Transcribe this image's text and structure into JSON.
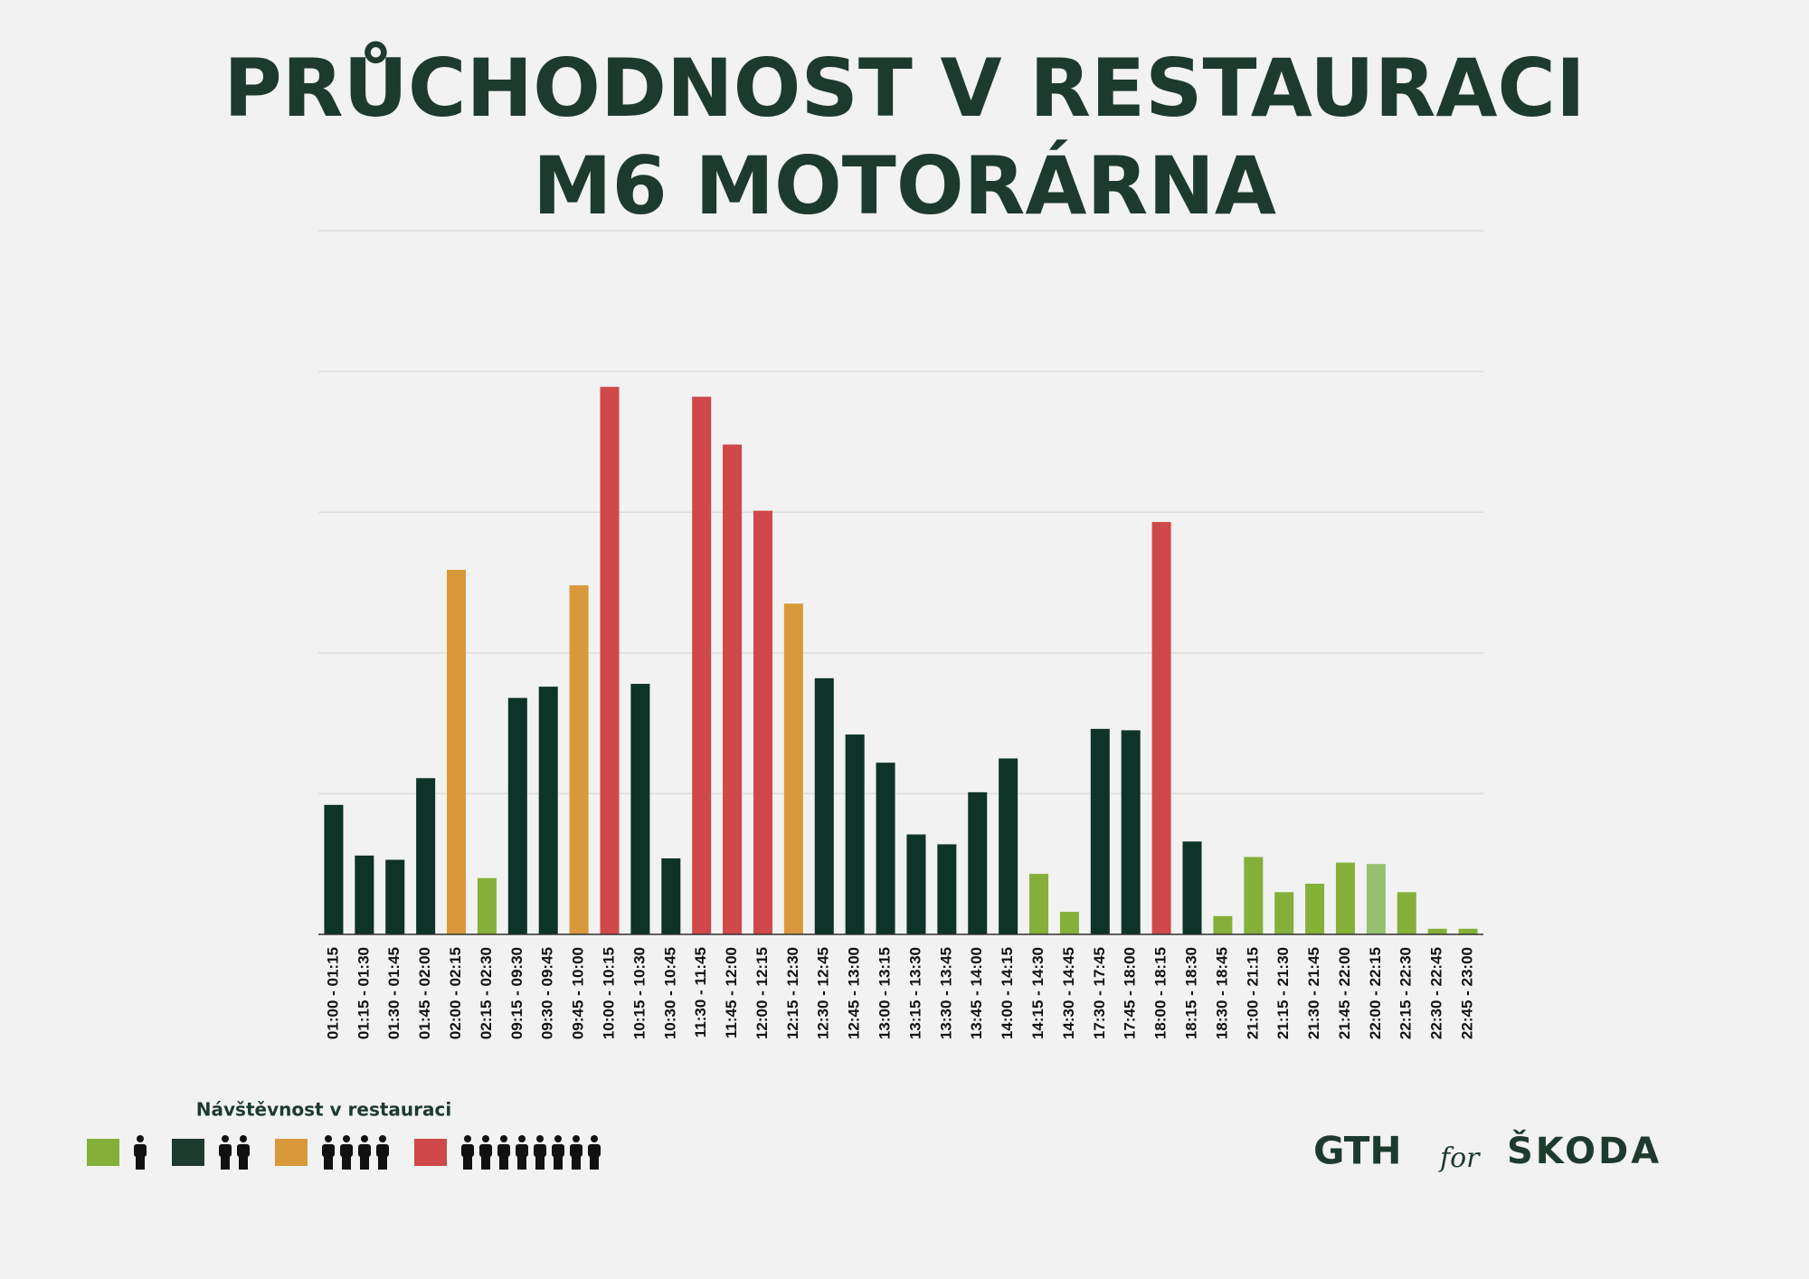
{
  "chart_data": {
    "type": "bar",
    "title": [
      "PRŮCHODNOST V RESTAURACI",
      "M6 MOTORÁRNA"
    ],
    "categories": [
      "01:00 - 01:15",
      "01:15 - 01:30",
      "01:30 - 01:45",
      "01:45 - 02:00",
      "02:00 - 02:15",
      "02:15 - 02:30",
      "09:15 - 09:30",
      "09:30 - 09:45",
      "09:45 - 10:00",
      "10:00 - 10:15",
      "10:15 - 10:30",
      "10:30 - 10:45",
      "11:30 - 11:45",
      "11:45 - 12:00",
      "12:00 - 12:15",
      "12:15 - 12:30",
      "12:30 - 12:45",
      "12:45 - 13:00",
      "13:00 - 13:15",
      "13:15 - 13:30",
      "13:30 - 13:45",
      "13:45 - 14:00",
      "14:00 - 14:15",
      "14:15 - 14:30",
      "14:30 - 14:45",
      "17:30 - 17:45",
      "17:45 - 18:00",
      "18:00 - 18:15",
      "18:15 - 18:30",
      "18:30 - 18:45",
      "21:00 - 21:15",
      "21:15 - 21:30",
      "21:30 - 21:45",
      "21:45 - 22:00",
      "22:00 - 22:15",
      "22:15 - 22:30",
      "22:30 - 22:45",
      "22:45 - 23:00"
    ],
    "values": [
      0.92,
      0.56,
      0.53,
      1.11,
      2.59,
      0.4,
      1.68,
      1.76,
      2.48,
      3.89,
      1.78,
      0.54,
      3.82,
      3.48,
      3.01,
      2.35,
      1.82,
      1.42,
      1.22,
      0.71,
      0.64,
      1.01,
      1.25,
      0.43,
      0.16,
      1.46,
      1.45,
      2.93,
      0.66,
      0.13,
      0.55,
      0.3,
      0.36,
      0.51,
      0.5,
      0.3,
      0.04,
      0.04
    ],
    "colors": [
      "#0e3328",
      "#0e3328",
      "#0e3328",
      "#0e3328",
      "#d9993a",
      "#84b03a",
      "#0e3328",
      "#0e3328",
      "#d9993a",
      "#d0484a",
      "#0e3328",
      "#0e3328",
      "#d0484a",
      "#d0484a",
      "#d0484a",
      "#d9993a",
      "#0e3328",
      "#0e3328",
      "#0e3328",
      "#0e3328",
      "#0e3328",
      "#0e3328",
      "#0e3328",
      "#84b03a",
      "#84b03a",
      "#0e3328",
      "#0e3328",
      "#d0484a",
      "#0e3328",
      "#84b03a",
      "#84b03a",
      "#84b03a",
      "#84b03a",
      "#84b03a",
      "#94c070",
      "#84b03a",
      "#84b03a",
      "#84b03a"
    ],
    "ylim": [
      0,
      5
    ],
    "yticks": [
      0,
      1,
      2,
      3,
      4,
      5
    ],
    "grid": true,
    "legend": {
      "title": "Návštěvnost v restauraci",
      "items": [
        {
          "color": "#84b03a",
          "people": 1
        },
        {
          "color": "#1d3a2e",
          "people": 2
        },
        {
          "color": "#d9993a",
          "people": 4
        },
        {
          "color": "#d0484a",
          "people": 8
        }
      ]
    }
  },
  "logos": {
    "left": "GTH",
    "middle": "for",
    "right": "ŠKODA"
  }
}
